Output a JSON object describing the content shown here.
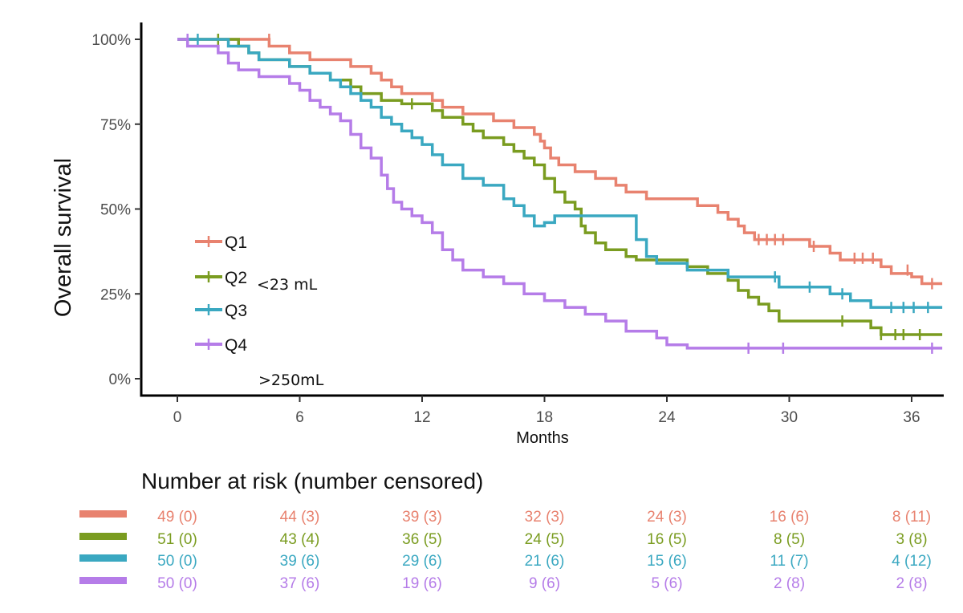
{
  "chart_data": {
    "type": "line",
    "title": "",
    "xlabel": "Months",
    "ylabel": "Overall survival",
    "xlim": [
      -1,
      37.5
    ],
    "ylim": [
      0,
      100
    ],
    "x_ticks": [
      0,
      6,
      12,
      18,
      24,
      30,
      36
    ],
    "y_ticks": [
      {
        "value": 0,
        "label": "0%"
      },
      {
        "value": 25,
        "label": "25%"
      },
      {
        "value": 50,
        "label": "50%"
      },
      {
        "value": 75,
        "label": "75%"
      },
      {
        "value": 100,
        "label": "100%"
      }
    ],
    "grid": false,
    "legend_position": "bottom-left",
    "annotations": [
      "<23 mL",
      ">250mL"
    ],
    "series": [
      {
        "name": "Q1",
        "color": "#E8826F",
        "steps": [
          [
            0,
            100
          ],
          [
            4.5,
            98
          ],
          [
            5.5,
            96
          ],
          [
            6.5,
            94
          ],
          [
            8.5,
            92
          ],
          [
            9.5,
            90
          ],
          [
            10,
            88
          ],
          [
            10.5,
            86
          ],
          [
            11,
            84
          ],
          [
            12.5,
            82
          ],
          [
            13,
            80
          ],
          [
            14,
            78
          ],
          [
            15.5,
            76
          ],
          [
            16.5,
            74
          ],
          [
            17.5,
            72
          ],
          [
            17.8,
            70
          ],
          [
            18,
            68
          ],
          [
            18.3,
            65
          ],
          [
            18.7,
            63
          ],
          [
            19.5,
            61
          ],
          [
            20.5,
            59
          ],
          [
            21.5,
            57
          ],
          [
            22,
            55
          ],
          [
            23,
            53
          ],
          [
            25.5,
            51
          ],
          [
            26.5,
            49
          ],
          [
            27,
            47
          ],
          [
            27.5,
            45
          ],
          [
            27.8,
            43
          ],
          [
            28.3,
            41
          ],
          [
            30,
            41
          ],
          [
            31,
            39
          ],
          [
            32,
            37
          ],
          [
            32.5,
            35
          ],
          [
            34.5,
            33
          ],
          [
            35,
            31
          ],
          [
            36,
            30
          ],
          [
            36.5,
            28
          ],
          [
            37.5,
            28
          ]
        ],
        "censored": [
          [
            4.5,
            100
          ],
          [
            28.5,
            41
          ],
          [
            28.9,
            41
          ],
          [
            29.3,
            41
          ],
          [
            29.7,
            41
          ],
          [
            31.2,
            39
          ],
          [
            33.2,
            35.5
          ],
          [
            33.6,
            35.5
          ],
          [
            34.1,
            35.5
          ],
          [
            35.8,
            32
          ],
          [
            37,
            28
          ]
        ]
      },
      {
        "name": "Q2",
        "color": "#7A9C20",
        "steps": [
          [
            0,
            100
          ],
          [
            3,
            98
          ],
          [
            3.5,
            96
          ],
          [
            4,
            94
          ],
          [
            5.5,
            92
          ],
          [
            6.5,
            90
          ],
          [
            7.5,
            88
          ],
          [
            8.5,
            86
          ],
          [
            9,
            84
          ],
          [
            10,
            82
          ],
          [
            11,
            81
          ],
          [
            12.5,
            79
          ],
          [
            13,
            77
          ],
          [
            14,
            75
          ],
          [
            14.5,
            73
          ],
          [
            15,
            71
          ],
          [
            16,
            69
          ],
          [
            16.5,
            67
          ],
          [
            17,
            65
          ],
          [
            17.5,
            63
          ],
          [
            18,
            59
          ],
          [
            18.5,
            55
          ],
          [
            19,
            52
          ],
          [
            19.5,
            50
          ],
          [
            19.8,
            45
          ],
          [
            20,
            43
          ],
          [
            20.5,
            40
          ],
          [
            21,
            38
          ],
          [
            22,
            36
          ],
          [
            22.5,
            35
          ],
          [
            25,
            33
          ],
          [
            26,
            31
          ],
          [
            27,
            29
          ],
          [
            27.5,
            26
          ],
          [
            28,
            24
          ],
          [
            28.5,
            22
          ],
          [
            29,
            20
          ],
          [
            29.5,
            17
          ],
          [
            33.5,
            17
          ],
          [
            34,
            15
          ],
          [
            34.5,
            13
          ],
          [
            37.5,
            13
          ]
        ],
        "censored": [
          [
            2,
            100
          ],
          [
            11.5,
            81
          ],
          [
            32.6,
            17
          ],
          [
            34.5,
            13
          ],
          [
            35.2,
            13
          ],
          [
            35.6,
            13
          ],
          [
            36.4,
            13
          ]
        ]
      },
      {
        "name": "Q3",
        "color": "#3AA8C1",
        "steps": [
          [
            0,
            100
          ],
          [
            2.5,
            98
          ],
          [
            3.5,
            96
          ],
          [
            4,
            94
          ],
          [
            5.5,
            92
          ],
          [
            6.5,
            90
          ],
          [
            7.5,
            88
          ],
          [
            8,
            86
          ],
          [
            8.5,
            84
          ],
          [
            9,
            82
          ],
          [
            9.5,
            80
          ],
          [
            10,
            77
          ],
          [
            10.5,
            75
          ],
          [
            11,
            73
          ],
          [
            11.5,
            71
          ],
          [
            12,
            69
          ],
          [
            12.5,
            66
          ],
          [
            13,
            63
          ],
          [
            14,
            59
          ],
          [
            15,
            57
          ],
          [
            16,
            53
          ],
          [
            16.5,
            51
          ],
          [
            17,
            48
          ],
          [
            17.5,
            45
          ],
          [
            18,
            46
          ],
          [
            18.5,
            48
          ],
          [
            22,
            48
          ],
          [
            22.5,
            41
          ],
          [
            23,
            36
          ],
          [
            23.5,
            34
          ],
          [
            25,
            32
          ],
          [
            27,
            30
          ],
          [
            29.5,
            27
          ],
          [
            32,
            25
          ],
          [
            33,
            23
          ],
          [
            34,
            21
          ],
          [
            37.5,
            21
          ]
        ],
        "censored": [
          [
            1,
            100
          ],
          [
            29.3,
            30
          ],
          [
            31,
            27
          ],
          [
            32.6,
            25
          ],
          [
            35,
            21
          ],
          [
            35.6,
            21
          ],
          [
            36.1,
            21
          ],
          [
            36.8,
            21
          ]
        ]
      },
      {
        "name": "Q4",
        "color": "#B57CE8",
        "steps": [
          [
            0,
            100
          ],
          [
            0.5,
            98
          ],
          [
            2,
            96
          ],
          [
            2.5,
            93
          ],
          [
            3,
            91
          ],
          [
            4,
            89
          ],
          [
            5.5,
            87
          ],
          [
            6,
            85
          ],
          [
            6.5,
            82
          ],
          [
            7,
            80
          ],
          [
            7.5,
            78
          ],
          [
            8,
            76
          ],
          [
            8.5,
            72
          ],
          [
            9,
            68
          ],
          [
            9.5,
            65
          ],
          [
            10,
            60
          ],
          [
            10.3,
            56
          ],
          [
            10.6,
            52
          ],
          [
            11,
            50
          ],
          [
            11.5,
            48
          ],
          [
            12,
            46
          ],
          [
            12.5,
            43
          ],
          [
            13,
            38
          ],
          [
            13.5,
            35
          ],
          [
            14,
            32
          ],
          [
            15,
            30
          ],
          [
            16,
            28
          ],
          [
            17,
            25
          ],
          [
            18,
            23
          ],
          [
            19,
            21
          ],
          [
            20,
            19
          ],
          [
            21,
            17
          ],
          [
            22,
            14
          ],
          [
            23.5,
            12
          ],
          [
            24,
            10
          ],
          [
            25,
            9
          ],
          [
            37.5,
            9
          ]
        ],
        "censored": [
          [
            0.5,
            100
          ],
          [
            28,
            9
          ],
          [
            29.7,
            9
          ],
          [
            37,
            9
          ]
        ]
      }
    ],
    "risk_table": {
      "title": "Number at risk (number censored)",
      "rows": [
        {
          "name": "Q1",
          "color": "#E8826F",
          "values": [
            "49 (0)",
            "44 (3)",
            "39 (3)",
            "32 (3)",
            "24 (3)",
            "16 (6)",
            "8 (11)"
          ]
        },
        {
          "name": "Q2",
          "color": "#7A9C20",
          "values": [
            "51 (0)",
            "43 (4)",
            "36 (5)",
            "24 (5)",
            "16 (5)",
            "8 (5)",
            "3 (8)"
          ]
        },
        {
          "name": "Q3",
          "color": "#3AA8C1",
          "values": [
            "50 (0)",
            "39 (6)",
            "29 (6)",
            "21 (6)",
            "15 (6)",
            "11 (7)",
            "4 (12)"
          ]
        },
        {
          "name": "Q4",
          "color": "#B57CE8",
          "values": [
            "50 (0)",
            "37 (6)",
            "19 (6)",
            "9 (6)",
            "5 (6)",
            "2 (8)",
            "2 (8)"
          ]
        }
      ]
    }
  }
}
